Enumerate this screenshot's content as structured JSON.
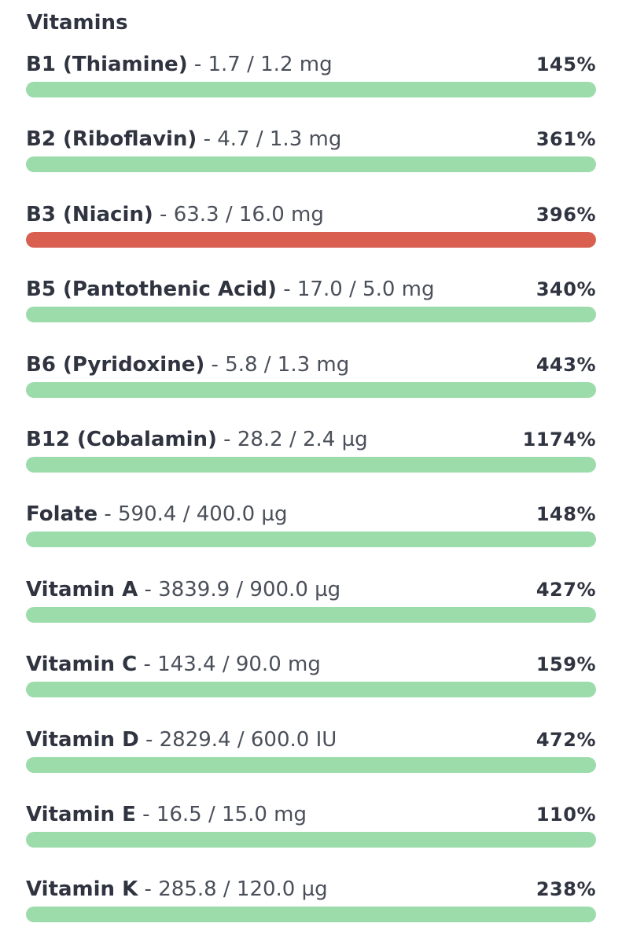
{
  "section": {
    "title": "Vitamins"
  },
  "colors": {
    "ok": "#9cdcab",
    "over": "#d95f50",
    "track": "#e5e7ea"
  },
  "nutrients": [
    {
      "name": "B1 (Thiamine)",
      "separator": " - ",
      "amount": "1.7 / 1.2 mg",
      "percent": "145%",
      "fill": 1.0,
      "status": "ok"
    },
    {
      "name": "B2 (Riboflavin)",
      "separator": " - ",
      "amount": "4.7 / 1.3 mg",
      "percent": "361%",
      "fill": 1.0,
      "status": "ok"
    },
    {
      "name": "B3 (Niacin)",
      "separator": " - ",
      "amount": "63.3 / 16.0 mg",
      "percent": "396%",
      "fill": 1.0,
      "status": "over"
    },
    {
      "name": "B5 (Pantothenic Acid)",
      "separator": " - ",
      "amount": "17.0 / 5.0 mg",
      "percent": "340%",
      "fill": 1.0,
      "status": "ok"
    },
    {
      "name": "B6 (Pyridoxine)",
      "separator": " - ",
      "amount": "5.8 / 1.3 mg",
      "percent": "443%",
      "fill": 1.0,
      "status": "ok"
    },
    {
      "name": "B12 (Cobalamin)",
      "separator": " - ",
      "amount": "28.2 / 2.4 µg",
      "percent": "1174%",
      "fill": 1.0,
      "status": "ok"
    },
    {
      "name": "Folate",
      "separator": " - ",
      "amount": "590.4 / 400.0 µg",
      "percent": "148%",
      "fill": 1.0,
      "status": "ok"
    },
    {
      "name": "Vitamin A",
      "separator": " - ",
      "amount": "3839.9 / 900.0 µg",
      "percent": "427%",
      "fill": 1.0,
      "status": "ok"
    },
    {
      "name": "Vitamin C",
      "separator": " - ",
      "amount": "143.4 / 90.0 mg",
      "percent": "159%",
      "fill": 1.0,
      "status": "ok"
    },
    {
      "name": "Vitamin D",
      "separator": " - ",
      "amount": "2829.4 / 600.0 IU",
      "percent": "472%",
      "fill": 1.0,
      "status": "ok"
    },
    {
      "name": "Vitamin E",
      "separator": " - ",
      "amount": "16.5 / 15.0 mg",
      "percent": "110%",
      "fill": 1.0,
      "status": "ok"
    },
    {
      "name": "Vitamin K",
      "separator": " - ",
      "amount": "285.8 / 120.0 µg",
      "percent": "238%",
      "fill": 1.0,
      "status": "ok"
    }
  ]
}
